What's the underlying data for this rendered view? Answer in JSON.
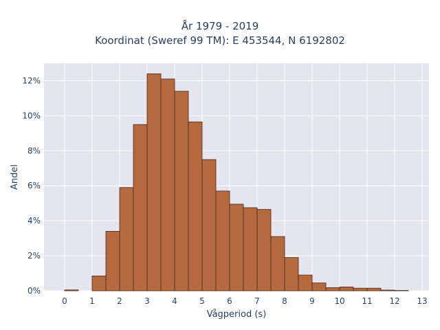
{
  "chart_data": {
    "type": "bar",
    "title": "År 1979 - 2019",
    "subtitle": "Koordinat (Sweref 99 TM): E 453544, N 6192802",
    "xlabel": "Vågperiod (s)",
    "ylabel": "Andel",
    "xlim": [
      -0.75,
      13.25
    ],
    "ylim": [
      0,
      0.13
    ],
    "x_ticks": [
      0,
      1,
      2,
      3,
      4,
      5,
      6,
      7,
      8,
      9,
      10,
      11,
      12,
      13
    ],
    "x_tick_labels": [
      "0",
      "1",
      "2",
      "3",
      "4",
      "5",
      "6",
      "7",
      "8",
      "9",
      "10",
      "11",
      "12",
      "13"
    ],
    "y_ticks": [
      0,
      0.02,
      0.04,
      0.06,
      0.08,
      0.1,
      0.12
    ],
    "y_tick_labels": [
      "0%",
      "2%",
      "4%",
      "6%",
      "8%",
      "10%",
      "12%"
    ],
    "bin_width": 0.5,
    "bin_starts": [
      0,
      0.5,
      1,
      1.5,
      2,
      2.5,
      3,
      3.5,
      4,
      4.5,
      5,
      5.5,
      6,
      6.5,
      7,
      7.5,
      8,
      8.5,
      9,
      9.5,
      10,
      10.5,
      11,
      11.5,
      12
    ],
    "values": [
      0.0005,
      0.0,
      0.0085,
      0.034,
      0.059,
      0.095,
      0.124,
      0.121,
      0.114,
      0.0965,
      0.075,
      0.057,
      0.0495,
      0.0475,
      0.0465,
      0.031,
      0.019,
      0.009,
      0.0045,
      0.0018,
      0.0022,
      0.0015,
      0.0015,
      0.0004,
      0.0002
    ],
    "grid": true,
    "colors": {
      "bar_fill": "#b5693e",
      "bar_stroke": "#4a2a18",
      "plot_background": "#e5e5ef",
      "grid": "#ffffff"
    }
  }
}
